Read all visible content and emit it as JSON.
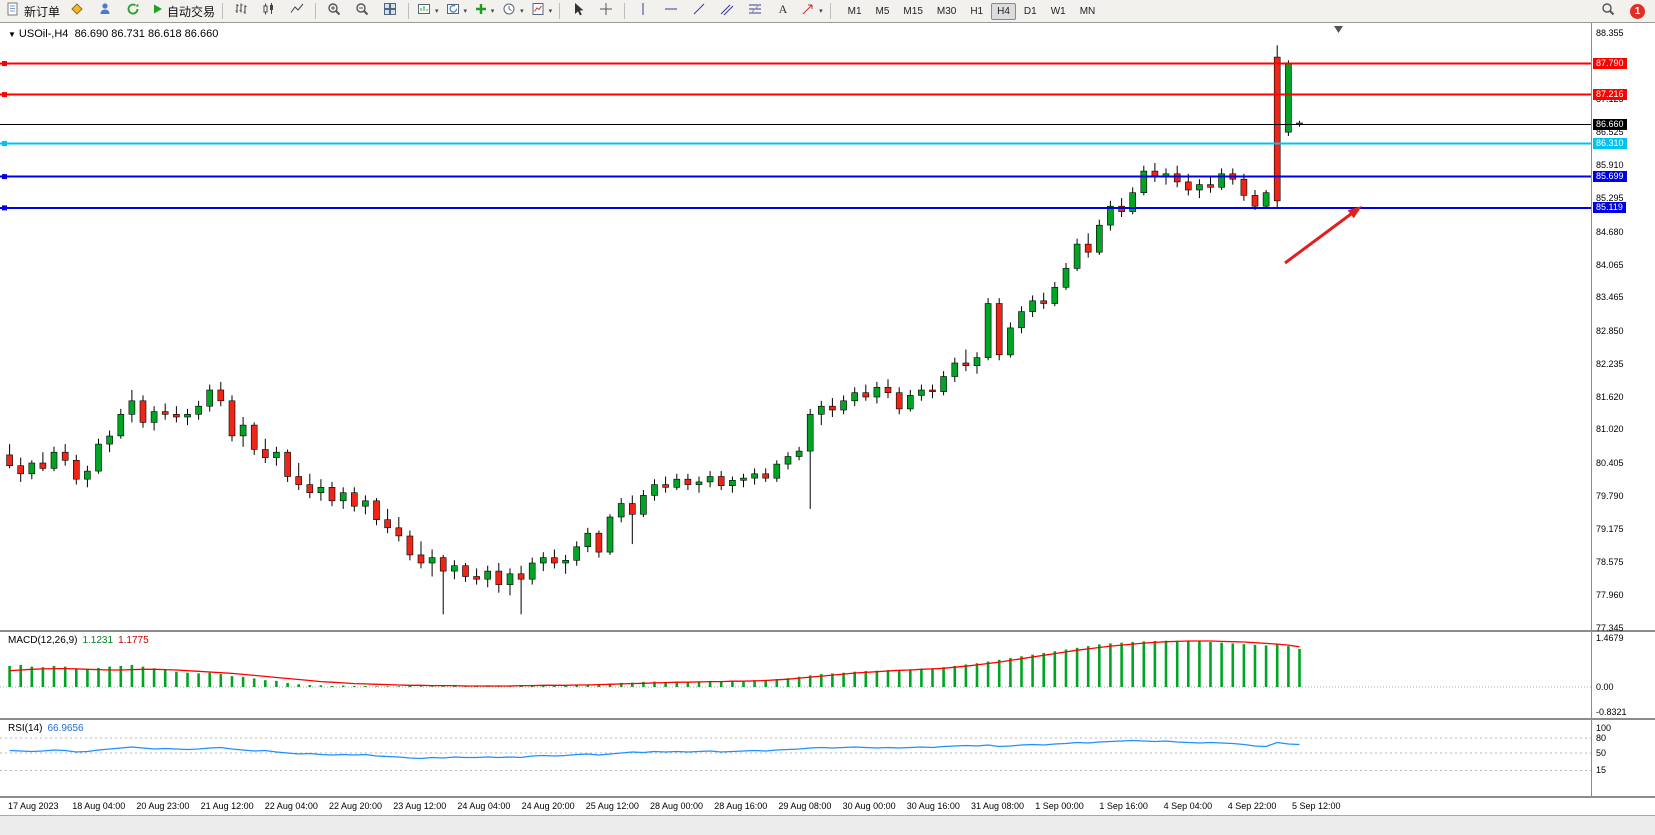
{
  "toolbar": {
    "new_order_label": "新订单",
    "auto_trading_label": "自动交易",
    "timeframes": [
      "M1",
      "M5",
      "M15",
      "M30",
      "H1",
      "H4",
      "D1",
      "W1",
      "MN"
    ],
    "active_timeframe": "H4",
    "notification_count": "1",
    "icon_names": [
      "new-order-icon",
      "market-watch-icon",
      "data-window-icon",
      "navigator-icon",
      "auto-trading-play-icon",
      "bar-chart-icon",
      "candlestick-chart-icon",
      "line-chart-icon",
      "zoom-in-icon",
      "zoom-out-icon",
      "tile-windows-icon",
      "new-chart-icon",
      "chart-profiles-icon",
      "indicators-icon",
      "periods-icon",
      "templates-icon",
      "cursor-icon",
      "crosshair-icon",
      "vertical-line-icon",
      "horizontal-line-icon",
      "trendline-icon",
      "channel-icon",
      "fibonacci-icon",
      "text-tool-icon",
      "arrows-tool-icon",
      "search-icon"
    ]
  },
  "chart": {
    "title_symbol": "USOil-,H4",
    "title_ohlc": "86.690 86.731 86.618 86.660",
    "price_top": 88.54,
    "price_bottom": 77.31,
    "bull_color": "#00a525",
    "bear_color": "#ef2617",
    "price_axis_labels": [
      "88.355",
      "87.125",
      "86.525",
      "85.910",
      "85.295",
      "84.680",
      "84.065",
      "83.465",
      "82.850",
      "82.235",
      "81.620",
      "81.020",
      "80.405",
      "79.790",
      "79.175",
      "78.575",
      "77.960",
      "77.345"
    ],
    "hlines": [
      {
        "price": 87.79,
        "label": "87.790",
        "color": "#ff0000"
      },
      {
        "price": 87.216,
        "label": "87.216",
        "color": "#ff0000"
      },
      {
        "price": 86.66,
        "label": "86.660",
        "color": "#000000"
      },
      {
        "price": 86.31,
        "label": "86.310",
        "color": "#00c4f0"
      },
      {
        "price": 85.699,
        "label": "85.699",
        "color": "#0000e0"
      },
      {
        "price": 85.119,
        "label": "85.119",
        "color": "#0000e0"
      }
    ],
    "time_labels": [
      "17 Aug 2023",
      "18 Aug 04:00",
      "20 Aug 23:00",
      "21 Aug 12:00",
      "22 Aug 04:00",
      "22 Aug 20:00",
      "23 Aug 12:00",
      "24 Aug 04:00",
      "24 Aug 20:00",
      "25 Aug 12:00",
      "28 Aug 00:00",
      "28 Aug 16:00",
      "29 Aug 08:00",
      "30 Aug 00:00",
      "30 Aug 16:00",
      "31 Aug 08:00",
      "1 Sep 00:00",
      "1 Sep 16:00",
      "4 Sep 04:00",
      "4 Sep 22:00",
      "5 Sep 12:00"
    ],
    "annotation": {
      "type": "arrow",
      "color": "#e01f1f"
    }
  },
  "macd": {
    "name": "MACD(12,26,9)",
    "value_main": "1.1231",
    "value_signal": "1.1775",
    "scale": [
      "1.4679",
      "0.00",
      "-0.8321"
    ],
    "histogram_color": "#00a525",
    "signal_color": "#ff0000"
  },
  "rsi": {
    "name": "RSI(14)",
    "value": "66.9656",
    "scale": [
      "100",
      "80",
      "50",
      "15"
    ],
    "levels": [
      80,
      50,
      15
    ],
    "line_color": "#1e90ff"
  },
  "chart_data": {
    "type": "candlestick",
    "symbol": "USOil",
    "timeframe": "H4",
    "ohlc": [
      [
        80.55,
        80.75,
        80.3,
        80.35
      ],
      [
        80.35,
        80.5,
        80.05,
        80.2
      ],
      [
        80.2,
        80.45,
        80.1,
        80.4
      ],
      [
        80.4,
        80.6,
        80.25,
        80.3
      ],
      [
        80.3,
        80.7,
        80.25,
        80.6
      ],
      [
        80.6,
        80.75,
        80.35,
        80.45
      ],
      [
        80.45,
        80.55,
        80.0,
        80.1
      ],
      [
        80.1,
        80.35,
        79.95,
        80.25
      ],
      [
        80.25,
        80.85,
        80.2,
        80.75
      ],
      [
        80.75,
        81.0,
        80.6,
        80.9
      ],
      [
        80.9,
        81.4,
        80.85,
        81.3
      ],
      [
        81.3,
        81.75,
        81.15,
        81.55
      ],
      [
        81.55,
        81.65,
        81.05,
        81.15
      ],
      [
        81.15,
        81.45,
        81.0,
        81.35
      ],
      [
        81.35,
        81.5,
        81.2,
        81.3
      ],
      [
        81.3,
        81.45,
        81.15,
        81.25
      ],
      [
        81.25,
        81.4,
        81.1,
        81.3
      ],
      [
        81.3,
        81.55,
        81.2,
        81.45
      ],
      [
        81.45,
        81.85,
        81.35,
        81.75
      ],
      [
        81.75,
        81.9,
        81.45,
        81.55
      ],
      [
        81.55,
        81.65,
        80.8,
        80.9
      ],
      [
        80.9,
        81.25,
        80.7,
        81.1
      ],
      [
        81.1,
        81.15,
        80.55,
        80.65
      ],
      [
        80.65,
        80.85,
        80.4,
        80.5
      ],
      [
        80.5,
        80.7,
        80.35,
        80.6
      ],
      [
        80.6,
        80.65,
        80.05,
        80.15
      ],
      [
        80.15,
        80.4,
        79.9,
        80.0
      ],
      [
        80.0,
        80.2,
        79.75,
        79.85
      ],
      [
        79.85,
        80.1,
        79.7,
        79.95
      ],
      [
        79.95,
        80.05,
        79.6,
        79.7
      ],
      [
        79.7,
        79.95,
        79.55,
        79.85
      ],
      [
        79.85,
        79.95,
        79.5,
        79.6
      ],
      [
        79.6,
        79.8,
        79.45,
        79.7
      ],
      [
        79.7,
        79.75,
        79.25,
        79.35
      ],
      [
        79.35,
        79.55,
        79.1,
        79.2
      ],
      [
        79.2,
        79.4,
        78.95,
        79.05
      ],
      [
        79.05,
        79.15,
        78.6,
        78.7
      ],
      [
        78.7,
        78.95,
        78.45,
        78.55
      ],
      [
        78.55,
        78.8,
        78.3,
        78.65
      ],
      [
        78.65,
        78.7,
        77.6,
        78.4
      ],
      [
        78.4,
        78.6,
        78.25,
        78.5
      ],
      [
        78.5,
        78.55,
        78.2,
        78.3
      ],
      [
        78.3,
        78.45,
        78.15,
        78.25
      ],
      [
        78.25,
        78.5,
        78.1,
        78.4
      ],
      [
        78.4,
        78.55,
        78.0,
        78.15
      ],
      [
        78.15,
        78.45,
        77.95,
        78.35
      ],
      [
        78.35,
        78.5,
        77.6,
        78.25
      ],
      [
        78.25,
        78.65,
        78.15,
        78.55
      ],
      [
        78.55,
        78.75,
        78.4,
        78.65
      ],
      [
        78.65,
        78.8,
        78.45,
        78.55
      ],
      [
        78.55,
        78.7,
        78.35,
        78.6
      ],
      [
        78.6,
        78.95,
        78.5,
        78.85
      ],
      [
        78.85,
        79.2,
        78.75,
        79.1
      ],
      [
        79.1,
        79.15,
        78.65,
        78.75
      ],
      [
        78.75,
        79.45,
        78.7,
        79.4
      ],
      [
        79.4,
        79.75,
        79.3,
        79.65
      ],
      [
        79.65,
        79.8,
        78.9,
        79.45
      ],
      [
        79.45,
        79.9,
        79.4,
        79.8
      ],
      [
        79.8,
        80.1,
        79.7,
        80.0
      ],
      [
        80.0,
        80.15,
        79.85,
        79.95
      ],
      [
        79.95,
        80.2,
        79.9,
        80.1
      ],
      [
        80.1,
        80.2,
        79.9,
        80.0
      ],
      [
        80.0,
        80.15,
        79.85,
        80.05
      ],
      [
        80.05,
        80.25,
        79.95,
        80.15
      ],
      [
        80.15,
        80.25,
        79.9,
        79.98
      ],
      [
        79.98,
        80.15,
        79.85,
        80.08
      ],
      [
        80.08,
        80.2,
        79.95,
        80.12
      ],
      [
        80.12,
        80.3,
        80.0,
        80.2
      ],
      [
        80.2,
        80.3,
        80.05,
        80.12
      ],
      [
        80.12,
        80.45,
        80.05,
        80.38
      ],
      [
        80.38,
        80.6,
        80.28,
        80.52
      ],
      [
        80.52,
        80.7,
        80.45,
        80.62
      ],
      [
        80.62,
        81.4,
        79.55,
        81.3
      ],
      [
        81.3,
        81.55,
        81.1,
        81.45
      ],
      [
        81.45,
        81.6,
        81.25,
        81.38
      ],
      [
        81.38,
        81.65,
        81.3,
        81.55
      ],
      [
        81.55,
        81.8,
        81.45,
        81.7
      ],
      [
        81.7,
        81.85,
        81.55,
        81.62
      ],
      [
        81.62,
        81.9,
        81.5,
        81.8
      ],
      [
        81.8,
        81.95,
        81.6,
        81.7
      ],
      [
        81.7,
        81.8,
        81.3,
        81.4
      ],
      [
        81.4,
        81.75,
        81.35,
        81.65
      ],
      [
        81.65,
        81.85,
        81.55,
        81.75
      ],
      [
        81.75,
        81.85,
        81.6,
        81.72
      ],
      [
        81.72,
        82.1,
        81.65,
        82.0
      ],
      [
        82.0,
        82.35,
        81.9,
        82.25
      ],
      [
        82.25,
        82.5,
        82.1,
        82.2
      ],
      [
        82.2,
        82.45,
        82.05,
        82.35
      ],
      [
        82.35,
        83.45,
        82.3,
        83.35
      ],
      [
        83.35,
        83.45,
        82.3,
        82.4
      ],
      [
        82.4,
        83.0,
        82.35,
        82.9
      ],
      [
        82.9,
        83.3,
        82.8,
        83.2
      ],
      [
        83.2,
        83.5,
        83.1,
        83.4
      ],
      [
        83.4,
        83.55,
        83.25,
        83.35
      ],
      [
        83.35,
        83.75,
        83.3,
        83.65
      ],
      [
        83.65,
        84.1,
        83.6,
        84.0
      ],
      [
        84.0,
        84.55,
        83.95,
        84.45
      ],
      [
        84.45,
        84.65,
        84.2,
        84.3
      ],
      [
        84.3,
        84.9,
        84.25,
        84.8
      ],
      [
        84.8,
        85.25,
        84.7,
        85.15
      ],
      [
        85.15,
        85.3,
        84.95,
        85.05
      ],
      [
        85.05,
        85.5,
        85.0,
        85.4
      ],
      [
        85.4,
        85.9,
        85.35,
        85.8
      ],
      [
        85.8,
        85.95,
        85.6,
        85.7
      ],
      [
        85.7,
        85.85,
        85.55,
        85.75
      ],
      [
        85.75,
        85.9,
        85.5,
        85.6
      ],
      [
        85.6,
        85.75,
        85.35,
        85.45
      ],
      [
        85.45,
        85.65,
        85.3,
        85.55
      ],
      [
        85.55,
        85.7,
        85.4,
        85.5
      ],
      [
        85.5,
        85.85,
        85.45,
        85.75
      ],
      [
        85.75,
        85.85,
        85.55,
        85.65
      ],
      [
        85.65,
        85.75,
        85.25,
        85.35
      ],
      [
        85.35,
        85.45,
        85.08,
        85.15
      ],
      [
        85.15,
        85.45,
        85.1,
        85.4
      ],
      [
        87.91,
        88.13,
        85.1,
        85.25
      ],
      [
        86.52,
        87.85,
        86.45,
        87.78
      ],
      [
        86.69,
        86.73,
        86.62,
        86.66
      ]
    ],
    "macd_histogram": [
      0.62,
      0.65,
      0.6,
      0.58,
      0.62,
      0.6,
      0.55,
      0.52,
      0.56,
      0.6,
      0.62,
      0.65,
      0.6,
      0.55,
      0.5,
      0.45,
      0.42,
      0.4,
      0.42,
      0.38,
      0.32,
      0.3,
      0.25,
      0.2,
      0.18,
      0.12,
      0.08,
      0.06,
      0.05,
      0.03,
      0.04,
      0.03,
      0.03,
      0.02,
      0.02,
      0.02,
      0.03,
      0.02,
      0.02,
      0.02,
      0.03,
      0.02,
      0.02,
      0.03,
      0.02,
      0.03,
      0.04,
      0.05,
      0.06,
      0.05,
      0.05,
      0.06,
      0.08,
      0.08,
      0.1,
      0.12,
      0.13,
      0.15,
      0.16,
      0.15,
      0.14,
      0.15,
      0.16,
      0.17,
      0.16,
      0.17,
      0.18,
      0.2,
      0.21,
      0.23,
      0.26,
      0.3,
      0.34,
      0.38,
      0.4,
      0.42,
      0.45,
      0.47,
      0.48,
      0.5,
      0.5,
      0.52,
      0.54,
      0.55,
      0.58,
      0.62,
      0.66,
      0.7,
      0.75,
      0.8,
      0.85,
      0.9,
      0.95,
      1.0,
      1.05,
      1.1,
      1.15,
      1.2,
      1.25,
      1.28,
      1.3,
      1.32,
      1.34,
      1.35,
      1.36,
      1.36,
      1.35,
      1.34,
      1.32,
      1.3,
      1.28,
      1.26,
      1.24,
      1.22,
      1.25,
      1.2,
      1.12
    ],
    "macd_signal": [
      0.48,
      0.5,
      0.52,
      0.53,
      0.54,
      0.54,
      0.53,
      0.52,
      0.51,
      0.5,
      0.5,
      0.51,
      0.52,
      0.52,
      0.51,
      0.5,
      0.48,
      0.46,
      0.44,
      0.42,
      0.4,
      0.37,
      0.34,
      0.31,
      0.28,
      0.25,
      0.22,
      0.19,
      0.16,
      0.14,
      0.12,
      0.1,
      0.09,
      0.08,
      0.07,
      0.06,
      0.05,
      0.05,
      0.04,
      0.04,
      0.04,
      0.03,
      0.03,
      0.03,
      0.03,
      0.03,
      0.04,
      0.04,
      0.05,
      0.05,
      0.05,
      0.06,
      0.06,
      0.07,
      0.08,
      0.09,
      0.1,
      0.11,
      0.12,
      0.13,
      0.14,
      0.14,
      0.15,
      0.16,
      0.16,
      0.17,
      0.17,
      0.18,
      0.19,
      0.21,
      0.23,
      0.26,
      0.29,
      0.32,
      0.35,
      0.38,
      0.41,
      0.43,
      0.45,
      0.47,
      0.49,
      0.5,
      0.52,
      0.53,
      0.55,
      0.58,
      0.61,
      0.65,
      0.69,
      0.73,
      0.78,
      0.83,
      0.88,
      0.93,
      0.98,
      1.03,
      1.08,
      1.12,
      1.16,
      1.2,
      1.23,
      1.26,
      1.29,
      1.31,
      1.33,
      1.34,
      1.35,
      1.35,
      1.35,
      1.34,
      1.33,
      1.32,
      1.3,
      1.28,
      1.26,
      1.23,
      1.18
    ],
    "rsi_series": [
      55,
      54,
      53,
      54,
      56,
      55,
      52,
      53,
      56,
      58,
      60,
      62,
      60,
      58,
      59,
      58,
      57,
      58,
      60,
      61,
      58,
      56,
      54,
      55,
      52,
      50,
      48,
      49,
      47,
      46,
      47,
      46,
      47,
      44,
      43,
      42,
      40,
      39,
      41,
      40,
      42,
      41,
      41,
      42,
      41,
      42,
      41,
      44,
      45,
      44,
      45,
      47,
      48,
      46,
      48,
      50,
      52,
      51,
      53,
      52,
      53,
      52,
      53,
      54,
      52,
      53,
      54,
      55,
      54,
      56,
      57,
      58,
      60,
      61,
      60,
      61,
      62,
      61,
      60,
      61,
      60,
      61,
      62,
      61,
      63,
      64,
      65,
      64,
      66,
      63,
      64,
      66,
      67,
      66,
      68,
      69,
      71,
      70,
      72,
      73,
      74,
      75,
      74,
      73,
      74,
      72,
      71,
      70,
      71,
      70,
      69,
      67,
      64,
      63,
      71,
      68,
      67
    ]
  }
}
